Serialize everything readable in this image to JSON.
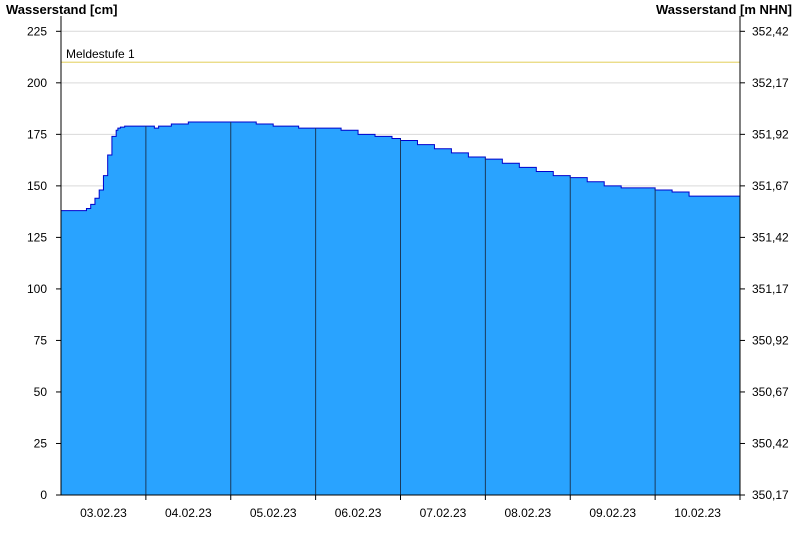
{
  "chart_data": {
    "type": "area",
    "left_axis_title": "Wasserstand [cm]",
    "right_axis_title": "Wasserstand [m NHN]",
    "y_ticks": [
      0,
      25,
      50,
      75,
      100,
      125,
      150,
      175,
      200,
      225
    ],
    "y_range": [
      0,
      230
    ],
    "right_ticks": [
      "350,17",
      "350,42",
      "350,67",
      "350,92",
      "351,17",
      "351,42",
      "351,67",
      "351,92",
      "352,17",
      "352,42"
    ],
    "x_labels": [
      "03.02.23",
      "04.02.23",
      "05.02.23",
      "06.02.23",
      "07.02.23",
      "08.02.23",
      "09.02.23",
      "10.02.23"
    ],
    "x_range_days": [
      2.0,
      10.0
    ],
    "day_boundaries": [
      3,
      4,
      5,
      6,
      7,
      8,
      9,
      10
    ],
    "series": [
      {
        "x_days": [
          2.0,
          2.2,
          2.3,
          2.35,
          2.4,
          2.45,
          2.5,
          2.55,
          2.6,
          2.65,
          2.67,
          2.7,
          2.75,
          2.8,
          2.85,
          2.9,
          3.0,
          3.1,
          3.15,
          3.3,
          3.5,
          3.7,
          3.9,
          4.0,
          4.3,
          4.5,
          4.8,
          5.0,
          5.3,
          5.5,
          5.7,
          5.9,
          6.0,
          6.2,
          6.4,
          6.6,
          6.8,
          7.0,
          7.2,
          7.4,
          7.6,
          7.8,
          8.0,
          8.2,
          8.4,
          8.6,
          8.8,
          9.0,
          9.2,
          9.4,
          9.6,
          9.8,
          10.0
        ],
        "values": [
          138,
          138,
          139,
          141,
          144,
          148,
          155,
          165,
          174,
          177,
          178,
          178.5,
          179,
          179,
          179,
          179,
          179,
          178,
          179,
          180,
          181,
          181,
          181,
          181,
          180,
          179,
          178,
          178,
          177,
          175,
          174,
          173,
          172,
          170,
          168,
          166,
          164,
          163,
          161,
          159,
          157,
          155,
          154,
          152,
          150,
          149,
          149,
          148,
          147,
          145,
          145,
          145,
          144
        ]
      }
    ],
    "reference_line": {
      "label": "Meldestufe 1",
      "value": 210
    },
    "colors": {
      "area_fill": "#29a3ff",
      "area_line": "#0000cc",
      "reference_line": "#e8d87a",
      "grid": "#d9d9d9",
      "day_line": "#1a3a5c"
    }
  }
}
